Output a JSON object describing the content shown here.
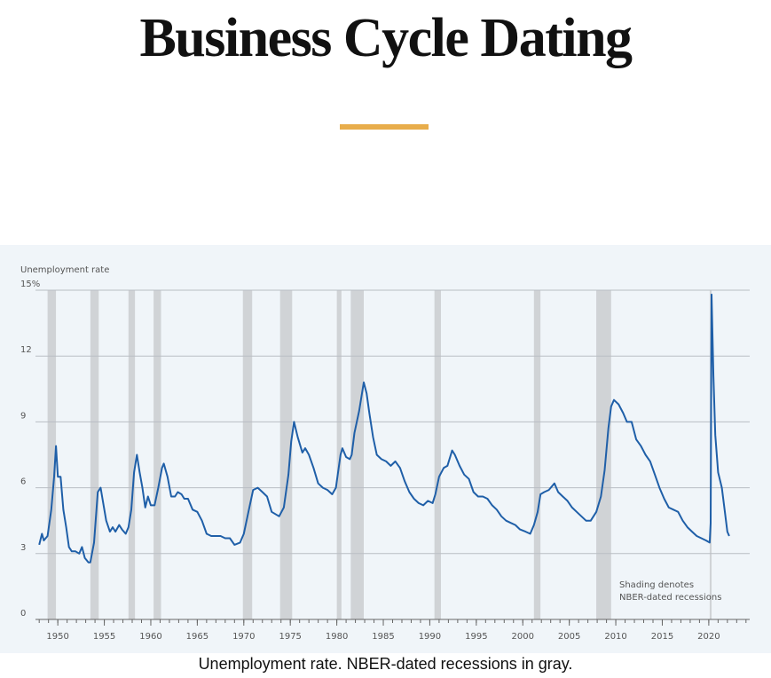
{
  "header": {
    "title": "Business Cycle Dating"
  },
  "chart_data": {
    "type": "line",
    "y_label": "Unemployment rate",
    "color": "#1f5fa8",
    "recession_color": "#d0d3d6",
    "grid": true,
    "xlim": [
      1947.6,
      2024.4
    ],
    "ylim": [
      0,
      15
    ],
    "xticks": [
      1950,
      1955,
      1960,
      1965,
      1970,
      1975,
      1980,
      1985,
      1990,
      1995,
      2000,
      2005,
      2010,
      2015,
      2020
    ],
    "yticks": [
      0,
      3,
      6,
      9,
      12,
      {
        "value": 15,
        "label": "15%"
      }
    ],
    "recessions": [
      [
        1948.9,
        1949.8
      ],
      [
        1953.5,
        1954.4
      ],
      [
        1957.6,
        1958.3
      ],
      [
        1960.3,
        1961.1
      ],
      [
        1969.9,
        1970.9
      ],
      [
        1973.9,
        1975.2
      ],
      [
        1980.0,
        1980.5
      ],
      [
        1981.5,
        1982.9
      ],
      [
        1990.5,
        1991.2
      ],
      [
        2001.2,
        2001.9
      ],
      [
        2007.9,
        2009.5
      ],
      [
        2020.1,
        2020.3
      ]
    ],
    "annotation": [
      "Shading denotes",
      "NBER-dated recessions"
    ],
    "x": [
      1948.0,
      1948.3,
      1948.5,
      1948.9,
      1949.3,
      1949.6,
      1949.8,
      1950.0,
      1950.3,
      1950.6,
      1950.9,
      1951.2,
      1951.5,
      1951.9,
      1952.3,
      1952.6,
      1952.9,
      1953.3,
      1953.5,
      1953.9,
      1954.3,
      1954.6,
      1954.8,
      1955.2,
      1955.6,
      1955.9,
      1956.2,
      1956.6,
      1956.9,
      1957.3,
      1957.6,
      1957.9,
      1958.2,
      1958.5,
      1958.8,
      1959.1,
      1959.4,
      1959.7,
      1960.0,
      1960.4,
      1960.8,
      1961.2,
      1961.4,
      1961.8,
      1962.2,
      1962.6,
      1962.9,
      1963.3,
      1963.6,
      1964.0,
      1964.5,
      1965.0,
      1965.5,
      1966.0,
      1966.5,
      1967.0,
      1967.5,
      1968.0,
      1968.5,
      1969.0,
      1969.6,
      1970.0,
      1970.5,
      1971.0,
      1971.5,
      1972.0,
      1972.5,
      1973.0,
      1973.8,
      1974.3,
      1974.8,
      1975.1,
      1975.4,
      1975.8,
      1976.3,
      1976.6,
      1977.0,
      1977.5,
      1978.0,
      1978.5,
      1979.0,
      1979.5,
      1979.9,
      1980.4,
      1980.6,
      1981.0,
      1981.4,
      1981.6,
      1981.9,
      1982.4,
      1982.9,
      1983.2,
      1983.5,
      1983.9,
      1984.3,
      1984.8,
      1985.3,
      1985.8,
      1986.3,
      1986.8,
      1987.3,
      1987.8,
      1988.3,
      1988.8,
      1989.3,
      1989.8,
      1990.3,
      1990.6,
      1991.0,
      1991.5,
      1991.9,
      1992.4,
      1992.7,
      1993.2,
      1993.7,
      1994.2,
      1994.7,
      1995.2,
      1995.7,
      1996.2,
      1996.7,
      1997.2,
      1997.7,
      1998.2,
      1998.7,
      1999.2,
      1999.7,
      2000.3,
      2000.8,
      2001.2,
      2001.6,
      2001.9,
      2002.3,
      2002.8,
      2003.4,
      2003.8,
      2004.3,
      2004.8,
      2005.3,
      2005.8,
      2006.3,
      2006.8,
      2007.3,
      2007.9,
      2008.4,
      2008.8,
      2009.2,
      2009.5,
      2009.8,
      2010.3,
      2010.8,
      2011.2,
      2011.7,
      2012.2,
      2012.7,
      2013.2,
      2013.7,
      2014.2,
      2014.7,
      2015.2,
      2015.7,
      2016.2,
      2016.7,
      2017.2,
      2017.7,
      2018.2,
      2018.7,
      2019.2,
      2019.7,
      2020.1,
      2020.2,
      2020.3,
      2020.5,
      2020.7,
      2021.0,
      2021.4,
      2021.7,
      2022.0,
      2022.2
    ],
    "values": [
      3.4,
      3.9,
      3.6,
      3.8,
      5.0,
      6.5,
      7.9,
      6.5,
      6.5,
      5.0,
      4.2,
      3.3,
      3.1,
      3.1,
      3.0,
      3.3,
      2.8,
      2.6,
      2.6,
      3.5,
      5.8,
      6.0,
      5.5,
      4.5,
      4.0,
      4.2,
      4.0,
      4.3,
      4.1,
      3.9,
      4.2,
      5.0,
      6.7,
      7.5,
      6.7,
      6.0,
      5.1,
      5.6,
      5.2,
      5.2,
      6.0,
      6.9,
      7.1,
      6.5,
      5.6,
      5.6,
      5.8,
      5.7,
      5.5,
      5.5,
      5.0,
      4.9,
      4.5,
      3.9,
      3.8,
      3.8,
      3.8,
      3.7,
      3.7,
      3.4,
      3.5,
      3.9,
      4.9,
      5.9,
      6.0,
      5.8,
      5.6,
      4.9,
      4.7,
      5.1,
      6.6,
      8.1,
      9.0,
      8.3,
      7.6,
      7.8,
      7.5,
      6.9,
      6.2,
      6.0,
      5.9,
      5.7,
      6.0,
      7.5,
      7.8,
      7.4,
      7.3,
      7.5,
      8.5,
      9.5,
      10.8,
      10.3,
      9.4,
      8.3,
      7.5,
      7.3,
      7.2,
      7.0,
      7.2,
      6.9,
      6.3,
      5.8,
      5.5,
      5.3,
      5.2,
      5.4,
      5.3,
      5.7,
      6.5,
      6.9,
      7.0,
      7.7,
      7.5,
      7.0,
      6.6,
      6.4,
      5.8,
      5.6,
      5.6,
      5.5,
      5.2,
      5.0,
      4.7,
      4.5,
      4.4,
      4.3,
      4.1,
      4.0,
      3.9,
      4.3,
      4.9,
      5.7,
      5.8,
      5.9,
      6.2,
      5.8,
      5.6,
      5.4,
      5.1,
      4.9,
      4.7,
      4.5,
      4.5,
      4.9,
      5.6,
      6.8,
      8.7,
      9.7,
      10.0,
      9.8,
      9.4,
      9.0,
      9.0,
      8.2,
      7.9,
      7.5,
      7.2,
      6.6,
      6.0,
      5.5,
      5.1,
      5.0,
      4.9,
      4.5,
      4.2,
      4.0,
      3.8,
      3.7,
      3.6,
      3.5,
      4.4,
      14.8,
      11.1,
      8.4,
      6.7,
      6.0,
      5.0,
      4.0,
      3.8
    ]
  },
  "caption": "Unemployment rate. NBER-dated recessions in gray."
}
